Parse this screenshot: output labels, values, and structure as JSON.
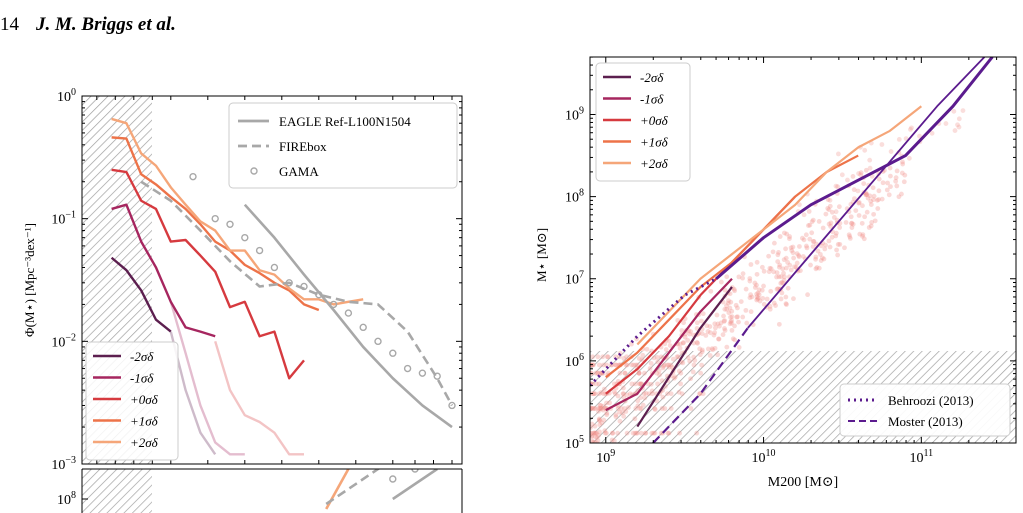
{
  "header": {
    "page_number": "14",
    "authors": "J. M. Briggs et al."
  },
  "colors": {
    "m2": "#5c1f4f",
    "m1": "#a6265f",
    "p0": "#d63a3f",
    "p1": "#ed7349",
    "p2": "#f5a679",
    "obs": "#a8a8a8",
    "behroozi": "#5b1b8e",
    "hatch": "#a0a0a0"
  },
  "chart_data": [
    {
      "type": "line",
      "panel": "left-top",
      "xlabel": "",
      "ylabel": "Φ(M⋆) [Mpc⁻³dex⁻¹]",
      "yscale": "log",
      "ylim": [
        0.001,
        1
      ],
      "yticks": [
        {
          "base": "10",
          "exp": "0"
        },
        {
          "base": "10",
          "exp": "−1"
        },
        {
          "base": "10",
          "exp": "−2"
        },
        {
          "base": "10",
          "exp": "−3"
        }
      ],
      "legend_bottom_left": [
        "-2σδ",
        "-1σδ",
        "+0σδ",
        "+1σδ",
        "+2σδ"
      ],
      "legend_top_right": [
        "EAGLE Ref-L100N1504",
        "FIREbox",
        "GAMA"
      ],
      "series": [
        {
          "name": "-2σδ",
          "color": "#5c1f4f",
          "x": [
            0.4,
            0.6,
            0.8,
            1.0,
            1.2
          ],
          "y": [
            0.048,
            0.038,
            0.026,
            0.015,
            0.012
          ]
        },
        {
          "name": "-1σδ",
          "color": "#a6265f",
          "x": [
            0.4,
            0.6,
            0.8,
            1.0,
            1.2,
            1.4,
            1.6,
            1.8
          ],
          "y": [
            0.12,
            0.13,
            0.065,
            0.04,
            0.021,
            0.013,
            0.012,
            0.011
          ]
        },
        {
          "name": "+0σδ",
          "color": "#d63a3f",
          "x": [
            0.4,
            0.6,
            0.8,
            1.0,
            1.2,
            1.4,
            1.6,
            1.8,
            2.0,
            2.2,
            2.4,
            2.6,
            2.8,
            3.0
          ],
          "y": [
            0.25,
            0.24,
            0.14,
            0.12,
            0.065,
            0.067,
            0.05,
            0.037,
            0.019,
            0.021,
            0.011,
            0.012,
            0.005,
            0.007
          ]
        },
        {
          "name": "+1σδ",
          "color": "#ed7349",
          "x": [
            0.4,
            0.6,
            0.8,
            1.0,
            1.2,
            1.4,
            1.6,
            1.8,
            2.0,
            2.2,
            2.4,
            2.6,
            2.8,
            3.0,
            3.2
          ],
          "y": [
            0.46,
            0.45,
            0.23,
            0.19,
            0.15,
            0.12,
            0.09,
            0.065,
            0.055,
            0.042,
            0.036,
            0.03,
            0.026,
            0.02,
            0.018
          ]
        },
        {
          "name": "+2σδ",
          "color": "#f5a679",
          "x": [
            0.4,
            0.6,
            0.8,
            1.0,
            1.2,
            1.4,
            1.6,
            1.8,
            2.0,
            2.2,
            2.4,
            2.6,
            2.8,
            3.0,
            3.2,
            3.4,
            3.6,
            3.8
          ],
          "y": [
            0.65,
            0.6,
            0.34,
            0.27,
            0.18,
            0.13,
            0.095,
            0.08,
            0.055,
            0.055,
            0.038,
            0.035,
            0.027,
            0.022,
            0.022,
            0.02,
            0.021,
            0.022
          ]
        },
        {
          "name": "faded -1σδ",
          "color": "#a6265f",
          "opacity": 0.3,
          "x": [
            1.2,
            1.4,
            1.6,
            1.8,
            2.0,
            2.2
          ],
          "y": [
            0.021,
            0.008,
            0.003,
            0.0015,
            0.0012,
            0.0012
          ]
        },
        {
          "name": "faded -2σδ",
          "color": "#5c1f4f",
          "opacity": 0.3,
          "x": [
            1.2,
            1.4,
            1.6,
            1.8
          ],
          "y": [
            0.012,
            0.004,
            0.0018,
            0.0012
          ]
        },
        {
          "name": "faded +0σδ",
          "color": "#d63a3f",
          "opacity": 0.3,
          "x": [
            1.8,
            2.0,
            2.2,
            2.4,
            2.6,
            2.8,
            3.0
          ],
          "y": [
            0.01,
            0.004,
            0.0025,
            0.0022,
            0.0018,
            0.0012,
            0.0012
          ]
        },
        {
          "name": "EAGLE Ref-L100N1504",
          "color": "#a8a8a8",
          "style": "solid",
          "x": [
            2.2,
            2.6,
            3.0,
            3.4,
            3.8,
            4.2,
            4.6,
            5.0
          ],
          "y": [
            0.13,
            0.07,
            0.035,
            0.018,
            0.009,
            0.005,
            0.003,
            0.002
          ]
        },
        {
          "name": "FIREbox",
          "color": "#a8a8a8",
          "style": "dashed",
          "x": [
            0.8,
            1.2,
            1.6,
            2.0,
            2.4,
            2.8,
            3.2,
            3.6,
            4.0,
            4.4,
            4.8,
            5.0
          ],
          "y": [
            0.2,
            0.14,
            0.08,
            0.045,
            0.028,
            0.03,
            0.024,
            0.021,
            0.02,
            0.012,
            0.005,
            0.003
          ]
        },
        {
          "name": "GAMA",
          "color": "#a8a8a8",
          "style": "markers",
          "x": [
            1.5,
            1.8,
            2.0,
            2.2,
            2.4,
            2.6,
            2.8,
            3.0,
            3.2,
            3.4,
            3.6,
            3.8,
            4.0,
            4.2,
            4.4,
            4.6,
            4.8,
            5.0
          ],
          "y": [
            0.22,
            0.1,
            0.09,
            0.07,
            0.055,
            0.04,
            0.03,
            0.028,
            0.024,
            0.02,
            0.017,
            0.013,
            0.01,
            0.008,
            0.006,
            0.0055,
            0.0052,
            0.003
          ]
        }
      ]
    },
    {
      "type": "line",
      "panel": "left-bottom",
      "yticks": [
        {
          "base": "10",
          "exp": "8"
        }
      ],
      "series": [
        {
          "name": "+2σδ",
          "color": "#f5a679",
          "x": [
            3.3,
            3.6
          ],
          "y": [
            7.8,
            8.6
          ]
        },
        {
          "name": "EAGLE",
          "color": "#a8a8a8",
          "style": "dashed",
          "x": [
            3.3,
            4.3
          ],
          "y": [
            7.9,
            8.9
          ]
        },
        {
          "name": "EAGLE",
          "color": "#a8a8a8",
          "style": "solid",
          "x": [
            4.2,
            4.8
          ],
          "y": [
            8.0,
            8.6
          ]
        },
        {
          "name": "GAMA",
          "color": "#a8a8a8",
          "style": "markers",
          "x": [
            4.2,
            4.5
          ],
          "y": [
            8.4,
            8.6
          ]
        }
      ]
    },
    {
      "type": "scatter",
      "panel": "right",
      "xlabel": "M200 [M⊙]",
      "ylabel": "M⋆ [M⊙]",
      "xscale": "log",
      "yscale": "log",
      "xlim": [
        8.9,
        11.6
      ],
      "ylim": [
        5,
        9.7
      ],
      "xticks": [
        {
          "base": "10",
          "exp": "9"
        },
        {
          "base": "10",
          "exp": "10"
        },
        {
          "base": "10",
          "exp": "11"
        }
      ],
      "yticks": [
        {
          "base": "10",
          "exp": "5"
        },
        {
          "base": "10",
          "exp": "6"
        },
        {
          "base": "10",
          "exp": "7"
        },
        {
          "base": "10",
          "exp": "8"
        },
        {
          "base": "10",
          "exp": "9"
        }
      ],
      "legend_top_left": [
        "-2σδ",
        "-1σδ",
        "+0σδ",
        "+1σδ",
        "+2σδ"
      ],
      "legend_bottom_right": [
        "Behroozi (2013)",
        "Moster (2013)"
      ],
      "series": [
        {
          "name": "-2σδ",
          "color": "#5c1f4f",
          "x": [
            9.2,
            9.4,
            9.6,
            9.8
          ],
          "y": [
            5.2,
            5.8,
            6.4,
            6.9
          ]
        },
        {
          "name": "-1σδ",
          "color": "#a6265f",
          "x": [
            9.0,
            9.2,
            9.4,
            9.6,
            9.8
          ],
          "y": [
            5.4,
            5.6,
            6.1,
            6.6,
            7.0
          ]
        },
        {
          "name": "+0σδ",
          "color": "#d63a3f",
          "x": [
            9.0,
            9.2,
            9.4,
            9.6,
            9.8,
            10.0,
            10.2
          ],
          "y": [
            5.6,
            5.9,
            6.3,
            6.8,
            7.2,
            7.6,
            8.0
          ]
        },
        {
          "name": "+1σδ",
          "color": "#ed7349",
          "x": [
            9.0,
            9.2,
            9.4,
            9.6,
            9.8,
            10.0,
            10.2,
            10.4,
            10.6
          ],
          "y": [
            5.8,
            6.1,
            6.5,
            6.9,
            7.2,
            7.6,
            8.0,
            8.3,
            8.5
          ]
        },
        {
          "name": "+2σδ",
          "color": "#f5a679",
          "x": [
            9.2,
            9.4,
            9.6,
            9.8,
            10.0,
            10.2,
            10.4,
            10.6,
            10.8,
            11.0
          ],
          "y": [
            6.2,
            6.6,
            7.0,
            7.3,
            7.6,
            7.9,
            8.3,
            8.6,
            8.8,
            9.1
          ]
        },
        {
          "name": "Behroozi (2013)",
          "color": "#5b1b8e",
          "style": "dotted",
          "x": [
            8.9,
            9.2,
            9.5,
            9.7
          ],
          "y": [
            5.7,
            6.3,
            6.8,
            7.0
          ]
        },
        {
          "name": "Behroozi (2013) thick",
          "color": "#5b1b8e",
          "style": "solid",
          "x": [
            9.7,
            10.0,
            10.3,
            10.6,
            10.9,
            11.2,
            11.45
          ],
          "y": [
            7.0,
            7.5,
            7.9,
            8.2,
            8.5,
            9.1,
            9.7
          ]
        },
        {
          "name": "Moster (2013)",
          "color": "#5b1b8e",
          "style": "dashed",
          "x": [
            9.3,
            9.6,
            9.9
          ],
          "y": [
            5.0,
            5.6,
            6.4
          ]
        },
        {
          "name": "Moster (2013) thin",
          "color": "#5b1b8e",
          "style": "solid",
          "x": [
            9.9,
            10.3,
            10.7,
            11.1,
            11.4
          ],
          "y": [
            6.4,
            7.3,
            8.2,
            9.1,
            9.7
          ]
        }
      ]
    }
  ]
}
